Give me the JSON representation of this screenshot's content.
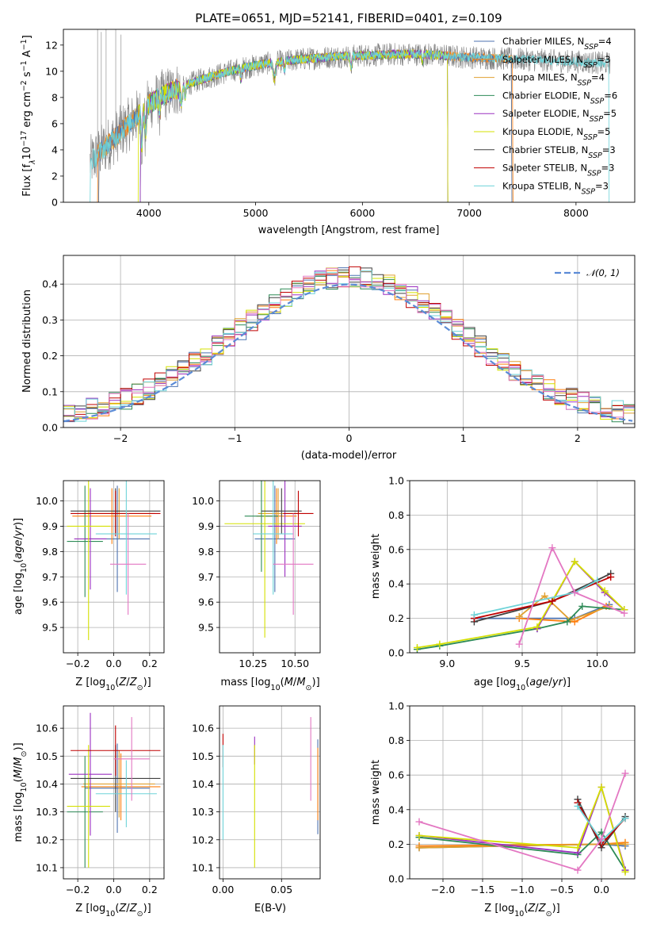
{
  "figure": {
    "title": "PLATE=0651, MJD=52141, FIBERID=0401, z=0.109"
  },
  "colors": {
    "Chabrier MILES": "#4c72b0",
    "Salpeter MILES": "#ff7f0e",
    "Kroupa MILES": "#e0a030",
    "Chabrier ELODIE": "#2e8b57",
    "Salpeter ELODIE": "#9b30c0",
    "Kroupa ELODIE": "#d4e000",
    "Chabrier STELIB": "#404040",
    "Salpeter STELIB": "#c00000",
    "Kroupa STELIB": "#6ed3d8",
    "normal": "#5b8bd6",
    "pink": "#e377c2"
  },
  "chart_data": [
    {
      "id": "spectrum",
      "type": "line",
      "xlabel": "wavelength [Angstrom, rest frame]",
      "ylabel": "Flux [f_λ10^-17 erg cm^-2 s^-1 A^-1]",
      "xlim": [
        3200,
        8550
      ],
      "ylim": [
        0,
        13.2
      ],
      "xticks": [
        4000,
        5000,
        6000,
        7000,
        8000
      ],
      "yticks": [
        0,
        2,
        4,
        6,
        8,
        10,
        12
      ],
      "legend_position": "top-right",
      "legend": [
        "Chabrier MILES, N_SSP=4",
        "Salpeter MILES, N_SSP=3",
        "Kroupa MILES, N_SSP=4",
        "Chabrier ELODIE, N_SSP=6",
        "Salpeter ELODIE, N_SSP=5",
        "Kroupa ELODIE, N_SSP=5",
        "Chabrier STELIB, N_SSP=3",
        "Salpeter STELIB, N_SSP=3",
        "Kroupa STELIB, N_SSP=3"
      ],
      "continuum": {
        "x": [
          3450,
          3550,
          3700,
          3900,
          4100,
          4300,
          4500,
          4800,
          5100,
          5400,
          5700,
          6000,
          6300,
          6600,
          6900,
          7200,
          7500,
          7800,
          8100,
          8300
        ],
        "y": [
          4.2,
          5.0,
          6.0,
          7.0,
          8.0,
          8.8,
          9.4,
          10.1,
          10.6,
          10.9,
          11.1,
          11.2,
          11.3,
          11.3,
          11.1,
          11.0,
          10.9,
          10.8,
          10.7,
          10.6
        ]
      }
    },
    {
      "id": "residuals",
      "type": "bar",
      "xlabel": "(data-model)/error",
      "ylabel": "Normed distribution",
      "xlim": [
        -2.5,
        2.5
      ],
      "ylim": [
        0,
        0.48
      ],
      "xticks": [
        -2,
        -1,
        0,
        1,
        2
      ],
      "yticks": [
        0,
        0.1,
        0.2,
        0.3,
        0.4
      ],
      "grid": true,
      "legend": [
        "𝒩(0, 1)"
      ],
      "legend_position": "top-right",
      "bin_width": 0.1
    },
    {
      "id": "age_vs_Z",
      "type": "scatter",
      "xlabel": "Z [log10(Z/Z⊙)]",
      "ylabel": "age [log10(age/yr)]",
      "xlim": [
        -0.28,
        0.28
      ],
      "ylim": [
        9.4,
        10.08
      ],
      "xticks": [
        -0.2,
        0.0,
        0.2
      ],
      "yticks": [
        9.5,
        9.6,
        9.7,
        9.8,
        9.9,
        10.0
      ],
      "grid": true,
      "points": [
        {
          "x": 0.02,
          "y": 9.85,
          "ex": 0.18,
          "ey": 0.21,
          "c": "Chabrier MILES"
        },
        {
          "x": -0.01,
          "y": 9.94,
          "ex": 0.22,
          "ey": 0.11,
          "c": "Salpeter MILES"
        },
        {
          "x": 0.03,
          "y": 9.95,
          "ex": 0.2,
          "ey": 0.1,
          "c": "Kroupa MILES"
        },
        {
          "x": -0.16,
          "y": 9.84,
          "ex": 0.1,
          "ey": 0.22,
          "c": "Chabrier ELODIE"
        },
        {
          "x": -0.13,
          "y": 9.85,
          "ex": 0.09,
          "ey": 0.2,
          "c": "Salpeter ELODIE"
        },
        {
          "x": -0.14,
          "y": 9.9,
          "ex": 0.12,
          "ey": 0.45,
          "c": "Kroupa ELODIE"
        },
        {
          "x": 0.01,
          "y": 9.96,
          "ex": 0.25,
          "ey": 0.09,
          "c": "Chabrier STELIB"
        },
        {
          "x": 0.01,
          "y": 9.95,
          "ex": 0.25,
          "ey": 0.09,
          "c": "Salpeter STELIB"
        },
        {
          "x": 0.07,
          "y": 9.87,
          "ex": 0.17,
          "ey": 0.24,
          "c": "Kroupa STELIB"
        },
        {
          "x": 0.08,
          "y": 9.75,
          "ex": 0.1,
          "ey": 0.2,
          "c": "pink"
        }
      ]
    },
    {
      "id": "age_vs_mass",
      "type": "scatter",
      "xlabel": "mass [log10(M/M⊙)]",
      "ylabel": "",
      "xlim": [
        10.05,
        10.65
      ],
      "ylim": [
        9.4,
        10.08
      ],
      "xticks": [
        10.25,
        10.5
      ],
      "yticks": [
        9.5,
        9.6,
        9.7,
        9.8,
        9.9,
        10.0
      ],
      "grid": true,
      "points": [
        {
          "x": 10.38,
          "y": 9.85,
          "ex": 0.12,
          "ey": 0.21,
          "c": "Chabrier MILES"
        },
        {
          "x": 10.39,
          "y": 9.94,
          "ex": 0.12,
          "ey": 0.11,
          "c": "Salpeter MILES"
        },
        {
          "x": 10.4,
          "y": 9.95,
          "ex": 0.12,
          "ey": 0.1,
          "c": "Kroupa MILES"
        },
        {
          "x": 10.3,
          "y": 9.94,
          "ex": 0.1,
          "ey": 0.22,
          "c": "Chabrier ELODIE"
        },
        {
          "x": 10.44,
          "y": 9.9,
          "ex": 0.1,
          "ey": 0.2,
          "c": "Salpeter ELODIE"
        },
        {
          "x": 10.32,
          "y": 9.91,
          "ex": 0.24,
          "ey": 0.45,
          "c": "Kroupa ELODIE"
        },
        {
          "x": 10.42,
          "y": 9.96,
          "ex": 0.12,
          "ey": 0.09,
          "c": "Chabrier STELIB"
        },
        {
          "x": 10.52,
          "y": 9.95,
          "ex": 0.09,
          "ey": 0.09,
          "c": "Salpeter STELIB"
        },
        {
          "x": 10.37,
          "y": 9.87,
          "ex": 0.12,
          "ey": 0.24,
          "c": "Kroupa STELIB"
        },
        {
          "x": 10.49,
          "y": 9.75,
          "ex": 0.12,
          "ey": 0.2,
          "c": "pink"
        }
      ]
    },
    {
      "id": "weight_vs_age",
      "type": "line",
      "xlabel": "age [log10(age/yr)]",
      "ylabel": "mass weight",
      "xlim": [
        8.75,
        10.25
      ],
      "ylim": [
        0,
        1.0
      ],
      "xticks": [
        9.0,
        9.5,
        10.0
      ],
      "yticks": [
        0.0,
        0.2,
        0.4,
        0.6,
        0.8,
        1.0
      ],
      "grid": true,
      "series": [
        {
          "c": "Chabrier MILES",
          "x": [
            9.18,
            9.85,
            10.08
          ],
          "y": [
            0.2,
            0.2,
            0.28
          ]
        },
        {
          "c": "Salpeter MILES",
          "x": [
            9.48,
            9.85,
            10.06
          ],
          "y": [
            0.2,
            0.18,
            0.27
          ]
        },
        {
          "c": "Kroupa MILES",
          "x": [
            9.48,
            9.65,
            9.82,
            10.08
          ],
          "y": [
            0.21,
            0.33,
            0.19,
            0.27
          ]
        },
        {
          "c": "Chabrier ELODIE",
          "x": [
            8.8,
            8.95,
            9.6,
            9.8,
            9.9,
            10.18
          ],
          "y": [
            0.02,
            0.04,
            0.14,
            0.18,
            0.27,
            0.25
          ]
        },
        {
          "c": "Salpeter ELODIE",
          "x": [
            9.6,
            9.85,
            10.05,
            10.18
          ],
          "y": [
            0.14,
            0.53,
            0.35,
            0.25
          ]
        },
        {
          "c": "Kroupa ELODIE",
          "x": [
            8.8,
            8.95,
            9.6,
            9.85,
            10.05,
            10.18
          ],
          "y": [
            0.03,
            0.05,
            0.15,
            0.53,
            0.36,
            0.25
          ]
        },
        {
          "c": "Chabrier STELIB",
          "x": [
            9.18,
            9.7,
            10.09
          ],
          "y": [
            0.18,
            0.3,
            0.46
          ]
        },
        {
          "c": "Salpeter STELIB",
          "x": [
            9.18,
            9.7,
            10.09
          ],
          "y": [
            0.2,
            0.3,
            0.44
          ]
        },
        {
          "c": "Kroupa STELIB",
          "x": [
            9.18,
            9.85,
            10.0
          ],
          "y": [
            0.22,
            0.35,
            0.42
          ]
        },
        {
          "c": "pink",
          "x": [
            9.48,
            9.7,
            9.85,
            10.18
          ],
          "y": [
            0.05,
            0.61,
            0.35,
            0.23
          ]
        }
      ]
    },
    {
      "id": "mass_vs_Z",
      "type": "scatter",
      "xlabel": "Z [log10(Z/Z⊙)]",
      "ylabel": "mass [log10(M/M⊙)]",
      "xlim": [
        -0.28,
        0.28
      ],
      "ylim": [
        10.06,
        10.68
      ],
      "xticks": [
        -0.2,
        0.0,
        0.2
      ],
      "yticks": [
        10.1,
        10.2,
        10.3,
        10.4,
        10.5,
        10.6
      ],
      "grid": true,
      "points": [
        {
          "x": 0.02,
          "y": 10.385,
          "ex": 0.18,
          "ey": 0.16,
          "c": "Chabrier MILES"
        },
        {
          "x": 0.04,
          "y": 10.39,
          "ex": 0.22,
          "ey": 0.12,
          "c": "Salpeter MILES"
        },
        {
          "x": 0.03,
          "y": 10.4,
          "ex": 0.2,
          "ey": 0.12,
          "c": "Kroupa MILES"
        },
        {
          "x": -0.16,
          "y": 10.3,
          "ex": 0.1,
          "ey": 0.2,
          "c": "Chabrier ELODIE"
        },
        {
          "x": -0.13,
          "y": 10.435,
          "ex": 0.12,
          "ey": 0.22,
          "c": "Salpeter ELODIE"
        },
        {
          "x": -0.14,
          "y": 10.32,
          "ex": 0.12,
          "ey": 0.22,
          "c": "Kroupa ELODIE"
        },
        {
          "x": 0.01,
          "y": 10.42,
          "ex": 0.25,
          "ey": 0.12,
          "c": "Chabrier STELIB"
        },
        {
          "x": 0.01,
          "y": 10.52,
          "ex": 0.25,
          "ey": 0.09,
          "c": "Salpeter STELIB"
        },
        {
          "x": 0.07,
          "y": 10.365,
          "ex": 0.17,
          "ey": 0.12,
          "c": "Kroupa STELIB"
        },
        {
          "x": 0.1,
          "y": 10.49,
          "ex": 0.1,
          "ey": 0.15,
          "c": "pink"
        }
      ]
    },
    {
      "id": "mass_vs_ebv",
      "type": "scatter",
      "xlabel": "E(B-V)",
      "ylabel": "",
      "xlim": [
        -0.003,
        0.083
      ],
      "ylim": [
        10.06,
        10.68
      ],
      "xticks": [
        0.0,
        0.05
      ],
      "yticks": [
        10.1,
        10.2,
        10.3,
        10.4,
        10.5,
        10.6
      ],
      "grid": true,
      "points": [
        {
          "x": 0.0,
          "y": 10.52,
          "ex": 0,
          "ey": 0.06,
          "c": "Salpeter STELIB"
        },
        {
          "x": 0.0,
          "y": 10.37,
          "ex": 0,
          "ey": 0.17,
          "c": "Kroupa STELIB"
        },
        {
          "x": 0.027,
          "y": 10.52,
          "ex": 0,
          "ey": 0.05,
          "c": "Salpeter ELODIE"
        },
        {
          "x": 0.027,
          "y": 10.32,
          "ex": 0,
          "ey": 0.22,
          "c": "Kroupa ELODIE"
        },
        {
          "x": 0.075,
          "y": 10.49,
          "ex": 0,
          "ey": 0.15,
          "c": "pink"
        },
        {
          "x": 0.081,
          "y": 10.39,
          "ex": 0,
          "ey": 0.17,
          "c": "Chabrier MILES"
        },
        {
          "x": 0.081,
          "y": 10.4,
          "ex": 0,
          "ey": 0.13,
          "c": "Salpeter MILES"
        }
      ]
    },
    {
      "id": "weight_vs_Z",
      "type": "line",
      "xlabel": "Z [log10(Z/Z⊙)]",
      "ylabel": "mass weight",
      "xlim": [
        -2.42,
        0.42
      ],
      "ylim": [
        0,
        1.0
      ],
      "xticks": [
        -2.0,
        -1.5,
        -1.0,
        -0.5,
        0.0
      ],
      "yticks": [
        0.0,
        0.2,
        0.4,
        0.6,
        0.8,
        1.0
      ],
      "grid": true,
      "series": [
        {
          "c": "Chabrier MILES",
          "x": [
            -2.3,
            0.0,
            0.3
          ],
          "y": [
            0.18,
            0.2,
            0.19
          ]
        },
        {
          "c": "Salpeter MILES",
          "x": [
            -2.3,
            0.0,
            0.3
          ],
          "y": [
            0.19,
            0.2,
            0.21
          ]
        },
        {
          "c": "Kroupa MILES",
          "x": [
            -2.3,
            0.0,
            0.3
          ],
          "y": [
            0.18,
            0.2,
            0.2
          ]
        },
        {
          "c": "Chabrier ELODIE",
          "x": [
            -2.3,
            -0.3,
            0.0,
            0.3
          ],
          "y": [
            0.24,
            0.14,
            0.27,
            0.05
          ]
        },
        {
          "c": "Salpeter ELODIE",
          "x": [
            -2.3,
            -0.3,
            0.0,
            0.3
          ],
          "y": [
            0.25,
            0.15,
            0.53,
            0.05
          ]
        },
        {
          "c": "Kroupa ELODIE",
          "x": [
            -2.3,
            -0.3,
            0.0,
            0.3
          ],
          "y": [
            0.25,
            0.18,
            0.53,
            0.04
          ]
        },
        {
          "c": "Chabrier STELIB",
          "x": [
            -0.3,
            0.0,
            0.3
          ],
          "y": [
            0.46,
            0.18,
            0.36
          ]
        },
        {
          "c": "Salpeter STELIB",
          "x": [
            -0.3,
            0.0,
            0.3
          ],
          "y": [
            0.44,
            0.2,
            0.35
          ]
        },
        {
          "c": "Kroupa STELIB",
          "x": [
            -0.3,
            0.0,
            0.3
          ],
          "y": [
            0.42,
            0.22,
            0.35
          ]
        },
        {
          "c": "pink",
          "x": [
            -2.3,
            -0.3,
            0.0,
            0.3
          ],
          "y": [
            0.33,
            0.05,
            0.23,
            0.61
          ]
        }
      ]
    }
  ]
}
